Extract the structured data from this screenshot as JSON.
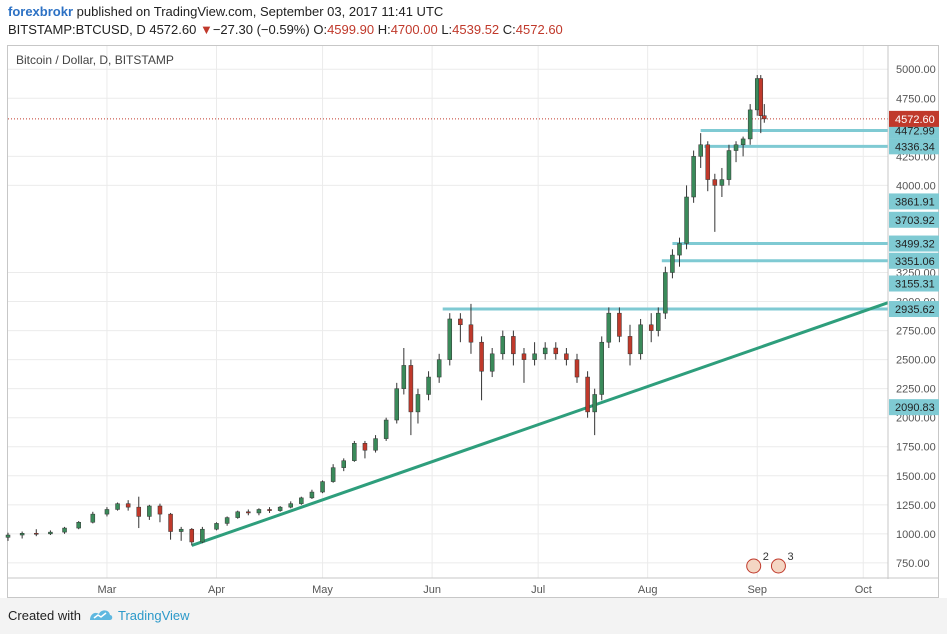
{
  "header": {
    "author": "forexbrokr",
    "published": " published on TradingView.com, September 03, 2017 11:41 UTC",
    "symbol": "BITSTAMP:BTCUSD, D",
    "last": "4572.60",
    "change_arrow": "▼",
    "change": "−27.30 (−0.59%)",
    "ohlc_o_label": "O:",
    "ohlc_o": "4599.90",
    "ohlc_h_label": "H:",
    "ohlc_h": "4700.00",
    "ohlc_l_label": "L:",
    "ohlc_l": "4539.52",
    "ohlc_c_label": "C:",
    "ohlc_c": "4572.60"
  },
  "footer": {
    "created_with": "Created with",
    "brand": "TradingView"
  },
  "colors": {
    "up": "#3a8a5a",
    "down": "#c0392b",
    "level": "#7fcad3",
    "trend": "#2e9e7c",
    "price_tag": "#c0392b",
    "grid": "#ebebeb"
  },
  "chart_data": {
    "type": "candlestick",
    "title": "Bitcoin / Dollar, D, BITSTAMP",
    "x_ticks": [
      "Mar",
      "Apr",
      "May",
      "Jun",
      "Jul",
      "Aug",
      "Sep",
      "Oct"
    ],
    "x_tick_dates": [
      "2017-03-01",
      "2017-04-01",
      "2017-05-01",
      "2017-06-01",
      "2017-07-01",
      "2017-08-01",
      "2017-09-01",
      "2017-10-01"
    ],
    "x_range": [
      "2017-02-01",
      "2017-10-08"
    ],
    "y_ticks": [
      750,
      1000,
      1250,
      1500,
      1750,
      2000,
      2250,
      2500,
      2750,
      3000,
      3250,
      4000,
      4250,
      4750,
      5000
    ],
    "y_range": [
      620,
      5200
    ],
    "last_price": "4572.60",
    "level_lines": [
      {
        "label": "4472.99",
        "value": 4472.99,
        "from": "2017-08-16"
      },
      {
        "label": "4336.34",
        "value": 4336.34,
        "from": "2017-08-17"
      },
      {
        "label": "3861.91",
        "value": 3861.91
      },
      {
        "label": "3703.92",
        "value": 3703.92
      },
      {
        "label": "3499.32",
        "value": 3499.32,
        "from": "2017-08-08"
      },
      {
        "label": "3351.06",
        "value": 3351.06,
        "from": "2017-08-05"
      },
      {
        "label": "3155.31",
        "value": 3155.31
      },
      {
        "label": "2935.62",
        "value": 2935.62,
        "from": "2017-06-04"
      },
      {
        "label": "2090.83",
        "value": 2090.83
      }
    ],
    "trendline": {
      "start": [
        "2017-03-25",
        900
      ],
      "end": [
        "2017-10-08",
        2990
      ]
    },
    "markers": [
      {
        "date": "2017-08-31",
        "label": "2"
      },
      {
        "date": "2017-09-07",
        "label": "3"
      }
    ],
    "candles": [
      [
        "2017-02-01",
        970,
        1010,
        940,
        990
      ],
      [
        "2017-02-05",
        990,
        1020,
        960,
        1005
      ],
      [
        "2017-02-09",
        1005,
        1040,
        980,
        1000
      ],
      [
        "2017-02-13",
        1000,
        1030,
        990,
        1015
      ],
      [
        "2017-02-17",
        1015,
        1060,
        1000,
        1050
      ],
      [
        "2017-02-21",
        1050,
        1110,
        1040,
        1100
      ],
      [
        "2017-02-25",
        1100,
        1190,
        1090,
        1170
      ],
      [
        "2017-03-01",
        1170,
        1230,
        1150,
        1210
      ],
      [
        "2017-03-04",
        1210,
        1270,
        1200,
        1260
      ],
      [
        "2017-03-07",
        1260,
        1290,
        1200,
        1230
      ],
      [
        "2017-03-10",
        1230,
        1320,
        1050,
        1150
      ],
      [
        "2017-03-13",
        1150,
        1250,
        1120,
        1240
      ],
      [
        "2017-03-16",
        1240,
        1260,
        1100,
        1170
      ],
      [
        "2017-03-19",
        1170,
        1180,
        950,
        1020
      ],
      [
        "2017-03-22",
        1020,
        1060,
        940,
        1040
      ],
      [
        "2017-03-25",
        1040,
        1050,
        900,
        930
      ],
      [
        "2017-03-28",
        930,
        1060,
        920,
        1040
      ],
      [
        "2017-04-01",
        1040,
        1100,
        1030,
        1090
      ],
      [
        "2017-04-04",
        1090,
        1150,
        1070,
        1140
      ],
      [
        "2017-04-07",
        1140,
        1200,
        1130,
        1190
      ],
      [
        "2017-04-10",
        1190,
        1210,
        1160,
        1180
      ],
      [
        "2017-04-13",
        1180,
        1220,
        1160,
        1210
      ],
      [
        "2017-04-16",
        1210,
        1230,
        1180,
        1200
      ],
      [
        "2017-04-19",
        1200,
        1240,
        1190,
        1230
      ],
      [
        "2017-04-22",
        1230,
        1280,
        1220,
        1260
      ],
      [
        "2017-04-25",
        1260,
        1320,
        1250,
        1310
      ],
      [
        "2017-04-28",
        1310,
        1380,
        1300,
        1360
      ],
      [
        "2017-05-01",
        1360,
        1460,
        1350,
        1450
      ],
      [
        "2017-05-04",
        1450,
        1600,
        1440,
        1570
      ],
      [
        "2017-05-07",
        1570,
        1650,
        1540,
        1630
      ],
      [
        "2017-05-10",
        1630,
        1800,
        1620,
        1780
      ],
      [
        "2017-05-13",
        1780,
        1800,
        1650,
        1720
      ],
      [
        "2017-05-16",
        1720,
        1850,
        1700,
        1820
      ],
      [
        "2017-05-19",
        1820,
        2000,
        1800,
        1980
      ],
      [
        "2017-05-22",
        1980,
        2300,
        1950,
        2250
      ],
      [
        "2017-05-24",
        2250,
        2600,
        2200,
        2450
      ],
      [
        "2017-05-26",
        2450,
        2500,
        1850,
        2050
      ],
      [
        "2017-05-28",
        2050,
        2250,
        1950,
        2200
      ],
      [
        "2017-05-31",
        2200,
        2400,
        2150,
        2350
      ],
      [
        "2017-06-03",
        2350,
        2550,
        2300,
        2500
      ],
      [
        "2017-06-06",
        2500,
        2900,
        2450,
        2850
      ],
      [
        "2017-06-09",
        2850,
        2900,
        2650,
        2800
      ],
      [
        "2017-06-12",
        2800,
        2980,
        2550,
        2650
      ],
      [
        "2017-06-15",
        2650,
        2700,
        2150,
        2400
      ],
      [
        "2017-06-18",
        2400,
        2600,
        2350,
        2550
      ],
      [
        "2017-06-21",
        2550,
        2750,
        2500,
        2700
      ],
      [
        "2017-06-24",
        2700,
        2750,
        2450,
        2550
      ],
      [
        "2017-06-27",
        2550,
        2600,
        2300,
        2500
      ],
      [
        "2017-06-30",
        2500,
        2650,
        2450,
        2550
      ],
      [
        "2017-07-03",
        2550,
        2650,
        2500,
        2600
      ],
      [
        "2017-07-06",
        2600,
        2650,
        2500,
        2550
      ],
      [
        "2017-07-09",
        2550,
        2600,
        2450,
        2500
      ],
      [
        "2017-07-12",
        2500,
        2550,
        2300,
        2350
      ],
      [
        "2017-07-15",
        2350,
        2400,
        2000,
        2050
      ],
      [
        "2017-07-17",
        2050,
        2250,
        1850,
        2200
      ],
      [
        "2017-07-19",
        2200,
        2700,
        2150,
        2650
      ],
      [
        "2017-07-21",
        2650,
        2950,
        2600,
        2900
      ],
      [
        "2017-07-24",
        2900,
        2950,
        2650,
        2700
      ],
      [
        "2017-07-27",
        2700,
        2800,
        2450,
        2550
      ],
      [
        "2017-07-30",
        2550,
        2850,
        2500,
        2800
      ],
      [
        "2017-08-02",
        2800,
        2900,
        2650,
        2750
      ],
      [
        "2017-08-04",
        2750,
        2950,
        2700,
        2900
      ],
      [
        "2017-08-06",
        2900,
        3300,
        2850,
        3250
      ],
      [
        "2017-08-08",
        3250,
        3450,
        3200,
        3400
      ],
      [
        "2017-08-10",
        3400,
        3550,
        3300,
        3500
      ],
      [
        "2017-08-12",
        3500,
        4000,
        3450,
        3900
      ],
      [
        "2017-08-14",
        3900,
        4300,
        3850,
        4250
      ],
      [
        "2017-08-16",
        4250,
        4450,
        4150,
        4350
      ],
      [
        "2017-08-18",
        4350,
        4380,
        3950,
        4050
      ],
      [
        "2017-08-20",
        4050,
        4100,
        3600,
        4000
      ],
      [
        "2017-08-22",
        4000,
        4150,
        3900,
        4050
      ],
      [
        "2017-08-24",
        4050,
        4350,
        4000,
        4300
      ],
      [
        "2017-08-26",
        4300,
        4380,
        4200,
        4350
      ],
      [
        "2017-08-28",
        4350,
        4420,
        4250,
        4400
      ],
      [
        "2017-08-30",
        4400,
        4700,
        4350,
        4650
      ],
      [
        "2017-09-01",
        4650,
        4950,
        4600,
        4920
      ],
      [
        "2017-09-02",
        4920,
        4950,
        4450,
        4600
      ],
      [
        "2017-09-03",
        4599.9,
        4700,
        4539.52,
        4572.6
      ]
    ]
  }
}
